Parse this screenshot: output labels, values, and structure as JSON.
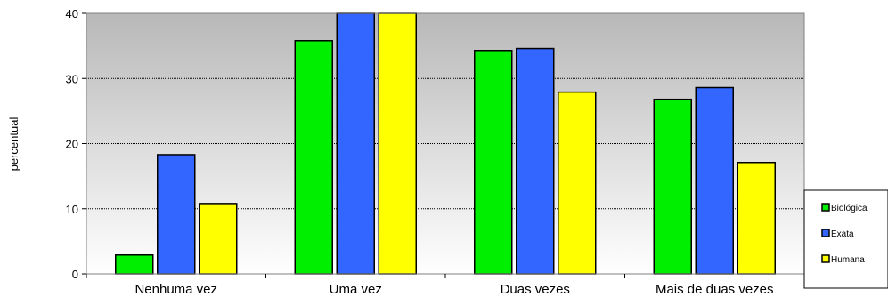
{
  "chart_data": {
    "type": "bar",
    "title": "",
    "xlabel": "",
    "ylabel": "percentual",
    "ylim": [
      0,
      40
    ],
    "yticks": [
      0,
      10,
      20,
      30,
      40
    ],
    "grid": true,
    "legend_position": "bottom-right",
    "categories": [
      "Nenhuma vez",
      "Uma vez",
      "Duas vezes",
      "Mais de duas vezes"
    ],
    "series": [
      {
        "name": "Biológica",
        "color": "#00ee00",
        "values": [
          2.9,
          35.8,
          34.3,
          26.8
        ]
      },
      {
        "name": "Exata",
        "color": "#3366ff",
        "values": [
          18.3,
          40,
          34.6,
          28.6
        ]
      },
      {
        "name": "Humana",
        "color": "#ffff00",
        "values": [
          10.8,
          40,
          27.9,
          17.1
        ]
      }
    ]
  }
}
